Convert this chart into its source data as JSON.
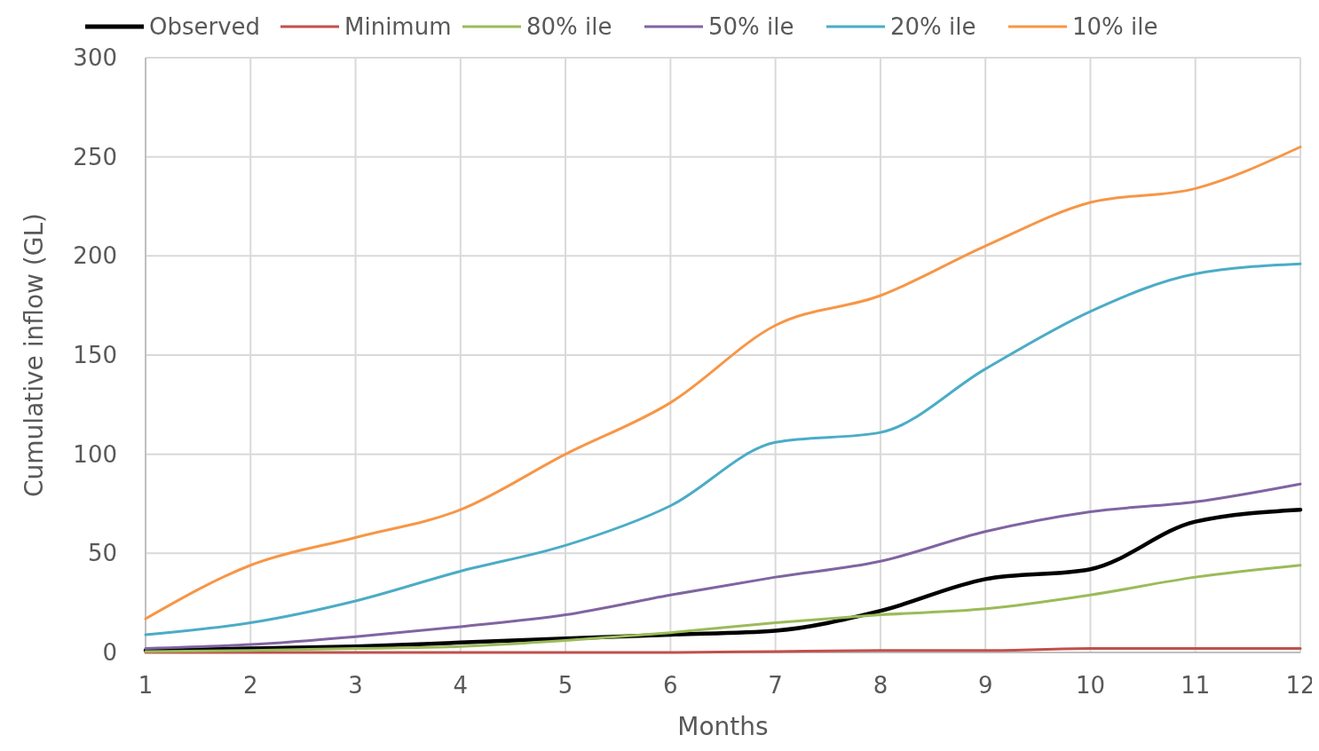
{
  "chart_data": {
    "type": "line",
    "xlabel": "Months",
    "ylabel": "Cumulative inflow (GL)",
    "x": [
      1,
      2,
      3,
      4,
      5,
      6,
      7,
      8,
      9,
      10,
      11,
      12
    ],
    "xlim": [
      1,
      12
    ],
    "xticks": [
      1,
      2,
      3,
      4,
      5,
      6,
      7,
      8,
      9,
      10,
      11,
      12
    ],
    "ylim": [
      0,
      300
    ],
    "yticks": [
      0,
      50,
      100,
      150,
      200,
      250,
      300
    ],
    "grid": true,
    "legend": "top",
    "marker": "none",
    "line_style": "solid",
    "series": [
      {
        "name": "Observed",
        "color": "#000000",
        "values": [
          1,
          2,
          3,
          5,
          7,
          9,
          11,
          21,
          37,
          42,
          66,
          72
        ]
      },
      {
        "name": "Minimum",
        "color": "#c0504d",
        "values": [
          0,
          0,
          0,
          0,
          0,
          0,
          0.5,
          1,
          1,
          2,
          2,
          2
        ]
      },
      {
        "name": "80% ile",
        "color": "#9bbb59",
        "values": [
          0.5,
          1,
          2,
          3,
          6,
          10,
          15,
          19,
          22,
          29,
          38,
          44
        ]
      },
      {
        "name": "50% ile",
        "color": "#8064a2",
        "values": [
          2,
          4,
          8,
          13,
          19,
          29,
          38,
          46,
          61,
          71,
          76,
          85
        ]
      },
      {
        "name": "20% ile",
        "color": "#4bacc6",
        "values": [
          9,
          15,
          26,
          41,
          54,
          74,
          106,
          111,
          143,
          172,
          191,
          196
        ]
      },
      {
        "name": "10% ile",
        "color": "#f79646",
        "values": [
          17,
          44,
          58,
          72,
          100,
          126,
          165,
          180,
          205,
          227,
          234,
          255
        ]
      }
    ]
  }
}
